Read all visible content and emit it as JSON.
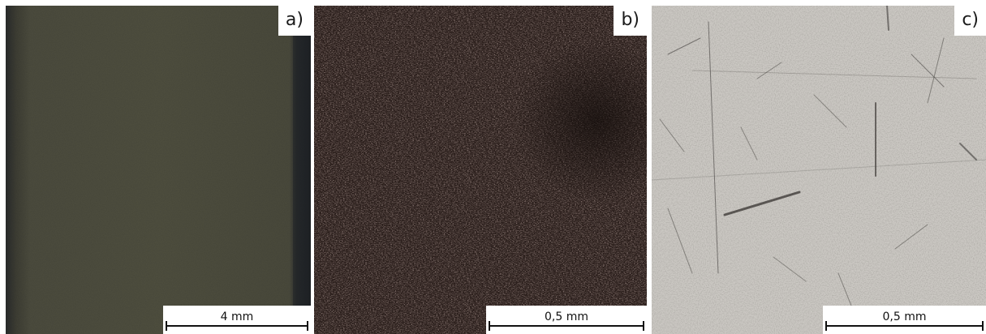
{
  "panels": [
    {
      "label": "a)",
      "scale_text": "4 mm",
      "description_colors": {
        "base": "#4e4e3f",
        "edge": "#23262a"
      }
    },
    {
      "label": "b)",
      "scale_text": "0,5 mm",
      "description_colors": {
        "base": "#2b1e1a",
        "speckle": "#7a5a4e"
      }
    },
    {
      "label": "c)",
      "scale_text": "0,5 mm",
      "description_colors": {
        "base": "#c9c6c1",
        "scratch": "#3c3a37"
      }
    }
  ]
}
